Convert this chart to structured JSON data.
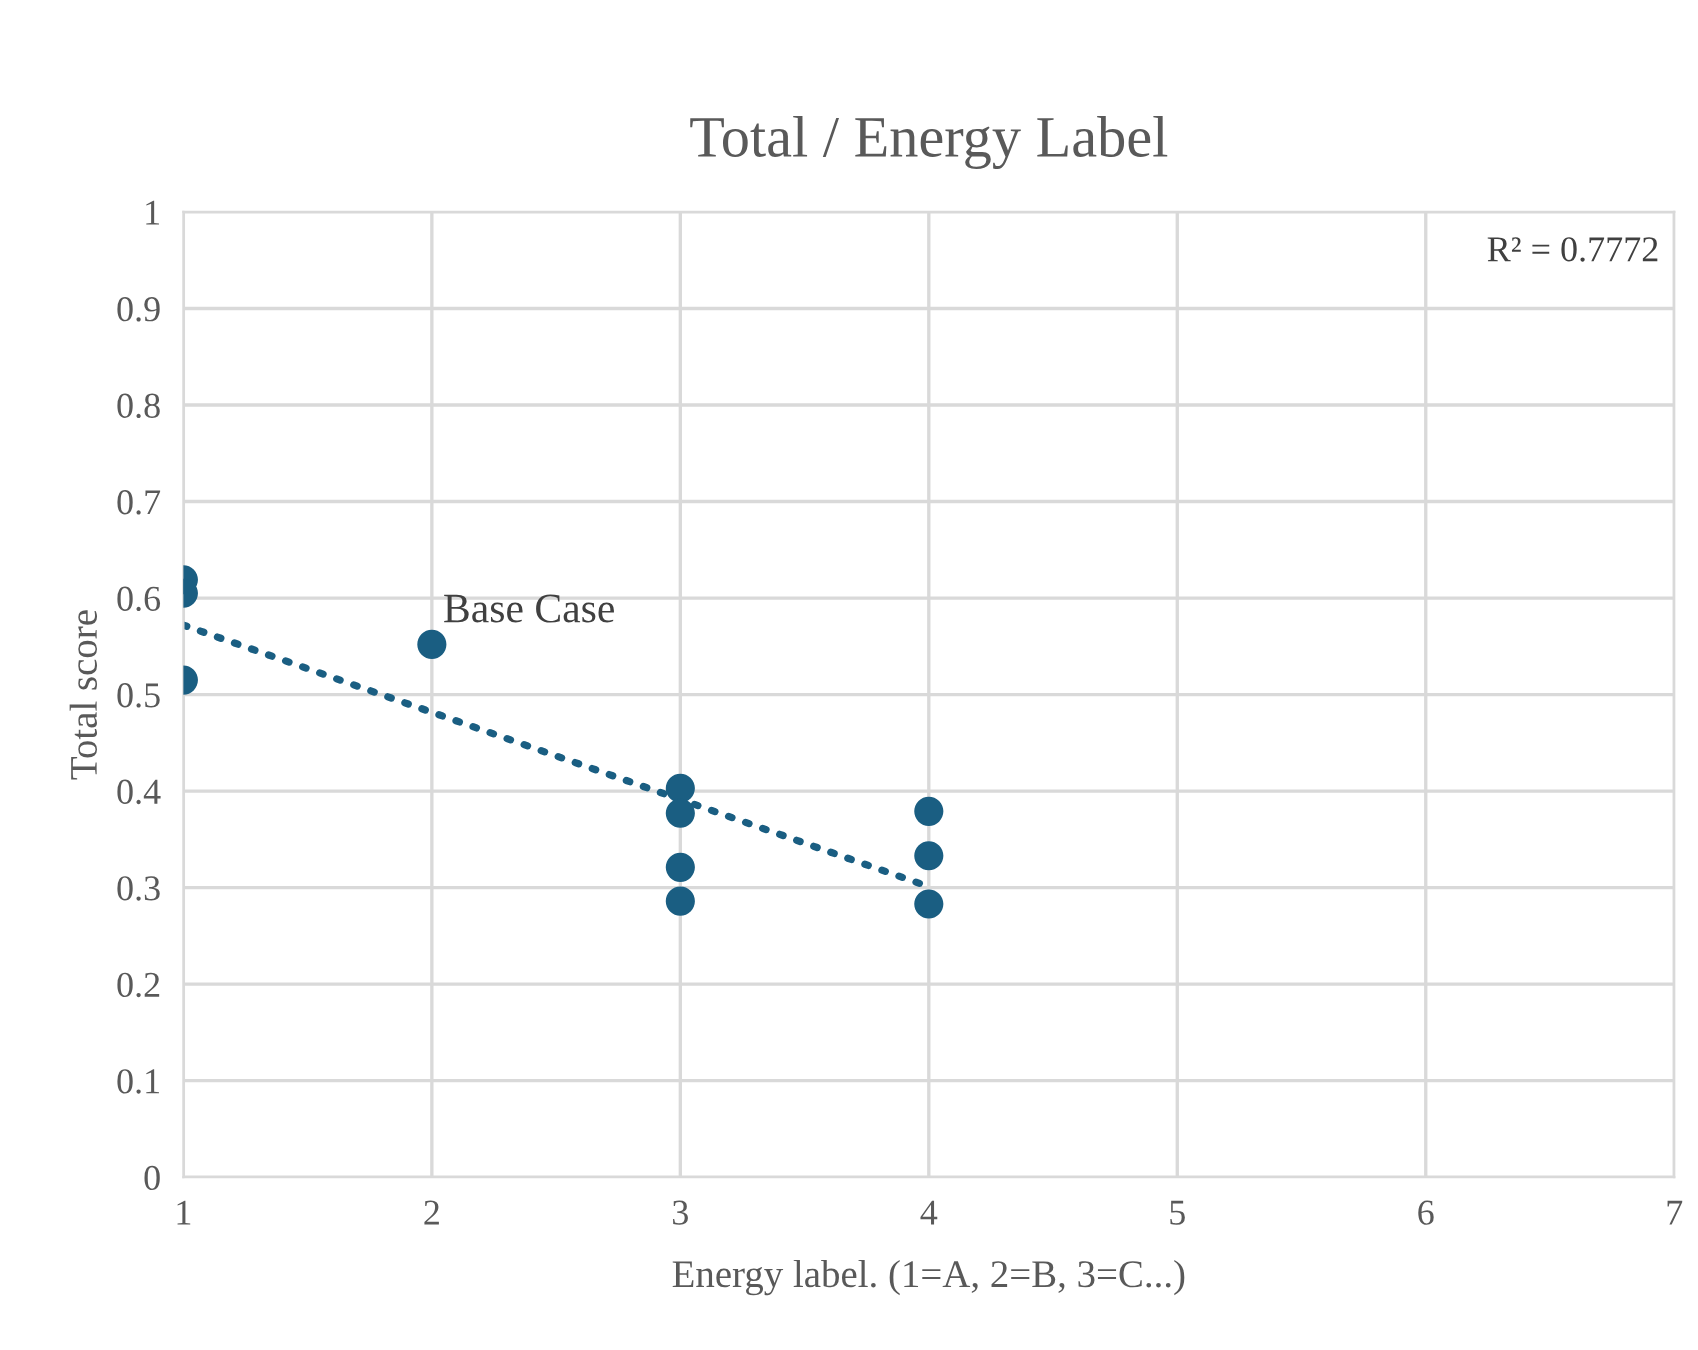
{
  "chart_data": {
    "type": "scatter",
    "title": "Total / Energy Label",
    "xlabel": "Energy label. (1=A, 2=B, 3=C...)",
    "ylabel": "Total score",
    "series": [
      {
        "color": "#1a5e82",
        "marker": "circle",
        "x": [
          1,
          1,
          1,
          2,
          3,
          3,
          3,
          3,
          4,
          4,
          4
        ],
        "values": [
          0.619,
          0.605,
          0.515,
          0.552,
          0.403,
          0.377,
          0.321,
          0.286,
          0.379,
          0.333,
          0.283
        ]
      },
      {
        "type": "line",
        "color": "#1a5e82",
        "marker": "none",
        "line_style": "dotted",
        "x": [
          1,
          4
        ],
        "values": [
          0.572,
          0.301
        ]
      }
    ],
    "xlim": [
      1,
      7
    ],
    "xticks": [
      1,
      2,
      3,
      4,
      5,
      6,
      7
    ],
    "ylim": [
      0,
      1
    ],
    "yticks": [
      0,
      0.1,
      0.2,
      0.3,
      0.4,
      0.5,
      0.6,
      0.7,
      0.8,
      0.9,
      1
    ],
    "grid": true,
    "annotations": [
      {
        "text": "Base Case",
        "x": 2,
        "y": 0.552
      },
      "R² = 0.7772"
    ]
  }
}
